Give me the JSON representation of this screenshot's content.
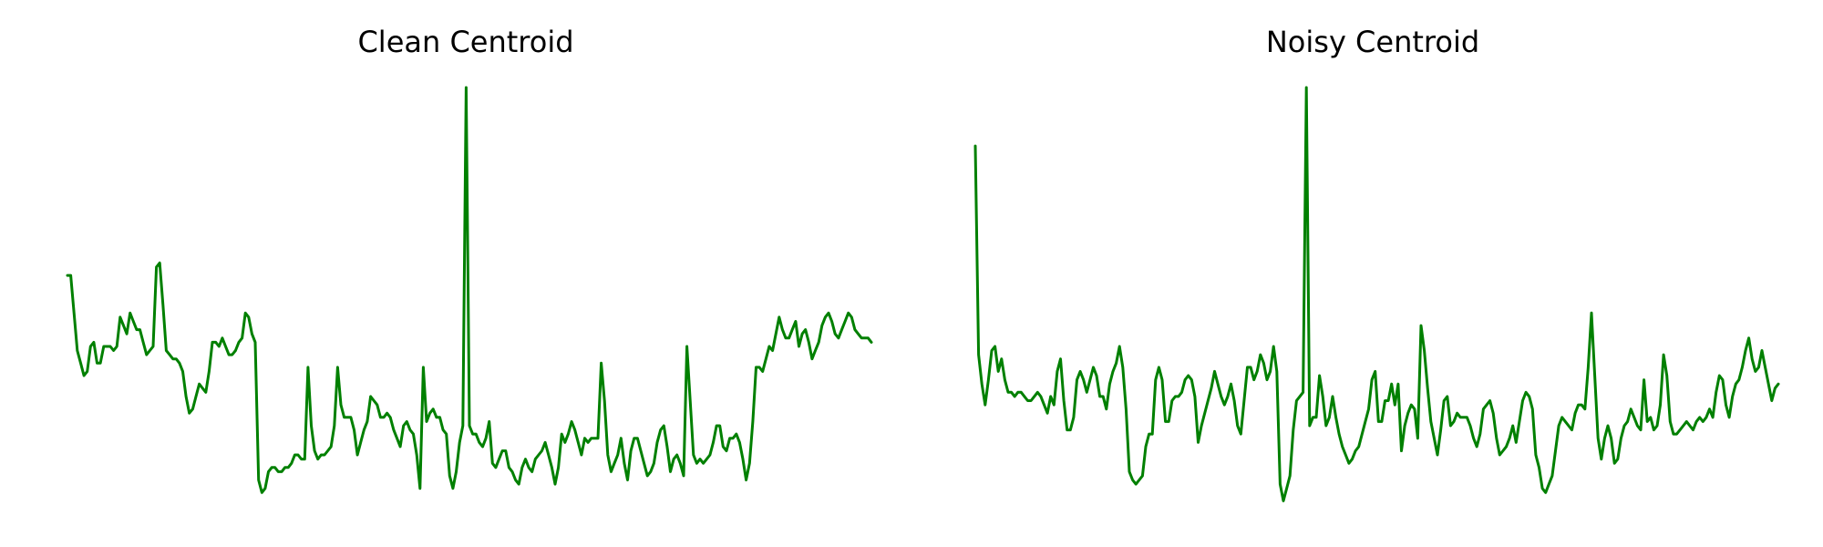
{
  "figure": {
    "panels": [
      {
        "title": "Clean Centroid"
      },
      {
        "title": "Noisy Centroid"
      }
    ]
  },
  "chart_data": [
    {
      "type": "line",
      "title": "Clean Centroid",
      "axes_visible": false,
      "grid": false,
      "ylim": [
        0.0,
        1.0
      ],
      "color": "#008000",
      "series": [
        {
          "values": [
            0.55,
            0.55,
            0.46,
            0.37,
            0.34,
            0.31,
            0.32,
            0.38,
            0.39,
            0.34,
            0.34,
            0.38,
            0.38,
            0.38,
            0.37,
            0.38,
            0.45,
            0.43,
            0.41,
            0.46,
            0.44,
            0.42,
            0.42,
            0.39,
            0.36,
            0.37,
            0.38,
            0.57,
            0.58,
            0.48,
            0.37,
            0.36,
            0.35,
            0.35,
            0.34,
            0.32,
            0.26,
            0.22,
            0.23,
            0.26,
            0.29,
            0.28,
            0.27,
            0.32,
            0.39,
            0.39,
            0.38,
            0.4,
            0.38,
            0.36,
            0.36,
            0.37,
            0.39,
            0.4,
            0.46,
            0.45,
            0.41,
            0.39,
            0.06,
            0.03,
            0.04,
            0.08,
            0.09,
            0.09,
            0.08,
            0.08,
            0.09,
            0.09,
            0.1,
            0.12,
            0.12,
            0.11,
            0.11,
            0.33,
            0.19,
            0.13,
            0.11,
            0.12,
            0.12,
            0.13,
            0.14,
            0.19,
            0.33,
            0.24,
            0.21,
            0.21,
            0.21,
            0.18,
            0.12,
            0.15,
            0.18,
            0.2,
            0.26,
            0.25,
            0.24,
            0.21,
            0.21,
            0.22,
            0.21,
            0.18,
            0.16,
            0.14,
            0.19,
            0.2,
            0.18,
            0.17,
            0.12,
            0.04,
            0.33,
            0.2,
            0.22,
            0.23,
            0.21,
            0.21,
            0.18,
            0.17,
            0.07,
            0.04,
            0.08,
            0.15,
            0.19,
            1.0,
            0.19,
            0.17,
            0.17,
            0.15,
            0.14,
            0.16,
            0.2,
            0.1,
            0.09,
            0.11,
            0.13,
            0.13,
            0.09,
            0.08,
            0.06,
            0.05,
            0.09,
            0.11,
            0.09,
            0.08,
            0.11,
            0.12,
            0.13,
            0.15,
            0.12,
            0.09,
            0.05,
            0.09,
            0.17,
            0.15,
            0.17,
            0.2,
            0.18,
            0.15,
            0.12,
            0.16,
            0.15,
            0.16,
            0.16,
            0.16,
            0.34,
            0.25,
            0.12,
            0.08,
            0.1,
            0.12,
            0.16,
            0.1,
            0.06,
            0.13,
            0.16,
            0.16,
            0.13,
            0.1,
            0.07,
            0.08,
            0.1,
            0.15,
            0.18,
            0.19,
            0.14,
            0.08,
            0.11,
            0.12,
            0.1,
            0.07,
            0.38,
            0.25,
            0.12,
            0.1,
            0.11,
            0.1,
            0.11,
            0.12,
            0.15,
            0.19,
            0.19,
            0.14,
            0.13,
            0.16,
            0.16,
            0.17,
            0.15,
            0.11,
            0.06,
            0.1,
            0.2,
            0.33,
            0.33,
            0.32,
            0.35,
            0.38,
            0.37,
            0.41,
            0.45,
            0.42,
            0.4,
            0.4,
            0.42,
            0.44,
            0.38,
            0.41,
            0.42,
            0.39,
            0.35,
            0.37,
            0.39,
            0.43,
            0.45,
            0.46,
            0.44,
            0.41,
            0.4,
            0.42,
            0.44,
            0.46,
            0.45,
            0.42,
            0.41,
            0.4,
            0.4,
            0.4,
            0.39
          ]
        }
      ]
    },
    {
      "type": "line",
      "title": "Noisy Centroid",
      "axes_visible": false,
      "grid": false,
      "ylim": [
        0.0,
        1.0
      ],
      "color": "#008000",
      "series": [
        {
          "values": [
            0.86,
            0.36,
            0.29,
            0.24,
            0.3,
            0.37,
            0.38,
            0.32,
            0.35,
            0.3,
            0.27,
            0.27,
            0.26,
            0.27,
            0.27,
            0.26,
            0.25,
            0.25,
            0.26,
            0.27,
            0.26,
            0.24,
            0.22,
            0.26,
            0.24,
            0.32,
            0.35,
            0.25,
            0.18,
            0.18,
            0.21,
            0.3,
            0.32,
            0.3,
            0.27,
            0.3,
            0.33,
            0.31,
            0.26,
            0.26,
            0.23,
            0.29,
            0.32,
            0.34,
            0.38,
            0.33,
            0.23,
            0.08,
            0.06,
            0.05,
            0.06,
            0.07,
            0.14,
            0.17,
            0.17,
            0.3,
            0.33,
            0.3,
            0.2,
            0.2,
            0.25,
            0.26,
            0.26,
            0.27,
            0.3,
            0.31,
            0.3,
            0.26,
            0.15,
            0.19,
            0.22,
            0.25,
            0.28,
            0.32,
            0.29,
            0.26,
            0.24,
            0.26,
            0.29,
            0.25,
            0.19,
            0.17,
            0.25,
            0.33,
            0.33,
            0.3,
            0.32,
            0.36,
            0.34,
            0.3,
            0.32,
            0.38,
            0.32,
            0.05,
            0.01,
            0.04,
            0.07,
            0.18,
            0.25,
            0.26,
            0.27,
            1.0,
            0.19,
            0.21,
            0.21,
            0.31,
            0.26,
            0.19,
            0.21,
            0.26,
            0.21,
            0.17,
            0.14,
            0.12,
            0.1,
            0.11,
            0.13,
            0.14,
            0.17,
            0.2,
            0.23,
            0.3,
            0.32,
            0.2,
            0.2,
            0.25,
            0.25,
            0.29,
            0.24,
            0.29,
            0.13,
            0.19,
            0.22,
            0.24,
            0.23,
            0.16,
            0.43,
            0.37,
            0.28,
            0.2,
            0.16,
            0.12,
            0.18,
            0.25,
            0.26,
            0.19,
            0.2,
            0.22,
            0.21,
            0.21,
            0.21,
            0.19,
            0.16,
            0.14,
            0.17,
            0.23,
            0.24,
            0.25,
            0.22,
            0.16,
            0.12,
            0.13,
            0.14,
            0.16,
            0.19,
            0.15,
            0.2,
            0.25,
            0.27,
            0.26,
            0.23,
            0.12,
            0.09,
            0.04,
            0.03,
            0.05,
            0.07,
            0.13,
            0.19,
            0.21,
            0.2,
            0.19,
            0.18,
            0.22,
            0.24,
            0.24,
            0.23,
            0.33,
            0.46,
            0.31,
            0.16,
            0.11,
            0.16,
            0.19,
            0.16,
            0.1,
            0.11,
            0.16,
            0.19,
            0.2,
            0.23,
            0.21,
            0.19,
            0.18,
            0.3,
            0.2,
            0.21,
            0.18,
            0.19,
            0.24,
            0.36,
            0.31,
            0.2,
            0.17,
            0.17,
            0.18,
            0.19,
            0.2,
            0.19,
            0.18,
            0.2,
            0.21,
            0.2,
            0.21,
            0.23,
            0.21,
            0.27,
            0.31,
            0.3,
            0.24,
            0.21,
            0.26,
            0.29,
            0.3,
            0.33,
            0.37,
            0.4,
            0.35,
            0.32,
            0.33,
            0.37,
            0.33,
            0.29,
            0.25,
            0.28,
            0.29
          ]
        }
      ]
    }
  ]
}
